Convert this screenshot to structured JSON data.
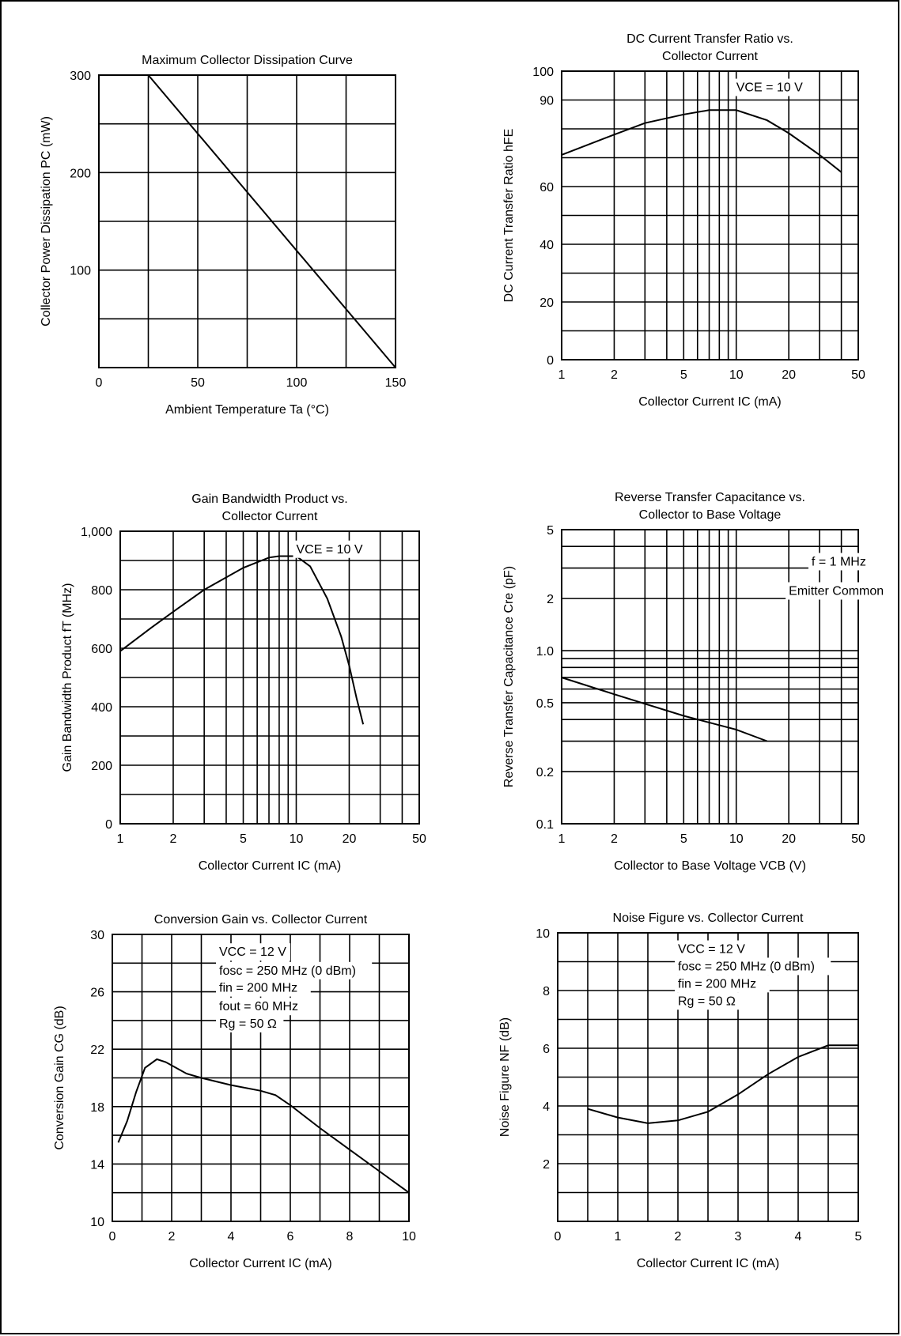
{
  "chart_data": [
    {
      "type": "line",
      "title": "Maximum Collector Dissipation Curve",
      "xlabel": "Ambient Temperature Ta (°C)",
      "ylabel": "Collector Power Dissipation PC (mW)",
      "xscale": "linear",
      "yscale": "linear",
      "xlim": [
        0,
        150
      ],
      "ylim": [
        0,
        300
      ],
      "xgrid": [
        25,
        50,
        75,
        100,
        125
      ],
      "ygrid": [
        50,
        100,
        150,
        200,
        250
      ],
      "xticks": [
        {
          "v": 0,
          "label": "0"
        },
        {
          "v": 50,
          "label": "50"
        },
        {
          "v": 100,
          "label": "100"
        },
        {
          "v": 150,
          "label": "150"
        }
      ],
      "yticks": [
        {
          "v": 100,
          "label": "100"
        },
        {
          "v": 200,
          "label": "200"
        },
        {
          "v": 300,
          "label": "300"
        }
      ],
      "series": [
        {
          "x": [
            25,
            150
          ],
          "y": [
            300,
            0
          ]
        }
      ],
      "annotations": []
    },
    {
      "type": "line",
      "title": "DC Current Transfer Ratio vs. Collector Current",
      "xlabel": "Collector Current IC (mA)",
      "ylabel": "DC Current Transfer Ratio hFE",
      "xscale": "log",
      "yscale": "linear",
      "xlim": [
        1,
        50
      ],
      "ylim": [
        0,
        100
      ],
      "xgrid": [
        2,
        3,
        4,
        5,
        6,
        7,
        8,
        9,
        10,
        20,
        30,
        40
      ],
      "ygrid": [
        10,
        20,
        30,
        40,
        50,
        60,
        70,
        80,
        90
      ],
      "xticks": [
        {
          "v": 1,
          "label": "1"
        },
        {
          "v": 2,
          "label": "2"
        },
        {
          "v": 5,
          "label": "5"
        },
        {
          "v": 10,
          "label": "10"
        },
        {
          "v": 20,
          "label": "20"
        },
        {
          "v": 50,
          "label": "50"
        }
      ],
      "yticks": [
        {
          "v": 0,
          "label": "0"
        },
        {
          "v": 20,
          "label": "20"
        },
        {
          "v": 40,
          "label": "40"
        },
        {
          "v": 60,
          "label": "60"
        },
        {
          "v": 90,
          "label": "90"
        },
        {
          "v": 100,
          "label": "100"
        }
      ],
      "series": [
        {
          "x": [
            1,
            2,
            3,
            5,
            7,
            10,
            15,
            20,
            30,
            40
          ],
          "y": [
            71,
            78,
            82,
            85,
            86.5,
            86.5,
            83,
            78.5,
            71,
            65
          ]
        }
      ],
      "annotations": [
        {
          "text": "VCE = 10 V",
          "x": 10,
          "y": 93
        }
      ]
    },
    {
      "type": "line",
      "title": "Gain Bandwidth Product vs. Collector Current",
      "xlabel": "Collector Current IC (mA)",
      "ylabel": "Gain Bandwidth Product fT (MHz)",
      "xscale": "log",
      "yscale": "linear",
      "xlim": [
        1,
        50
      ],
      "ylim": [
        0,
        1000
      ],
      "xgrid": [
        2,
        3,
        4,
        5,
        6,
        7,
        8,
        9,
        10,
        20,
        30,
        40
      ],
      "ygrid": [
        100,
        200,
        300,
        400,
        500,
        600,
        700,
        800,
        900
      ],
      "xticks": [
        {
          "v": 1,
          "label": "1"
        },
        {
          "v": 2,
          "label": "2"
        },
        {
          "v": 5,
          "label": "5"
        },
        {
          "v": 10,
          "label": "10"
        },
        {
          "v": 20,
          "label": "20"
        },
        {
          "v": 50,
          "label": "50"
        }
      ],
      "yticks": [
        {
          "v": 0,
          "label": "0"
        },
        {
          "v": 200,
          "label": "200"
        },
        {
          "v": 400,
          "label": "400"
        },
        {
          "v": 600,
          "label": "600"
        },
        {
          "v": 800,
          "label": "800"
        },
        {
          "v": 1000,
          "label": "1,000"
        }
      ],
      "series": [
        {
          "x": [
            1,
            1.5,
            2,
            3,
            5,
            7,
            8,
            10,
            12,
            15,
            18,
            20,
            22,
            24
          ],
          "y": [
            590,
            670,
            725,
            800,
            875,
            910,
            915,
            915,
            880,
            770,
            640,
            540,
            430,
            340
          ]
        }
      ],
      "annotations": [
        {
          "text": "VCE = 10 V",
          "x": 10,
          "y": 925
        }
      ]
    },
    {
      "type": "line",
      "title": "Reverse Transfer Capacitance vs. Collector to Base Voltage",
      "xlabel": "Collector to Base Voltage VCB (V)",
      "ylabel": "Reverse Transfer Capacitance Cre (pF)",
      "xscale": "log",
      "yscale": "log",
      "xlim": [
        1,
        50
      ],
      "ylim": [
        0.1,
        5
      ],
      "xgrid": [
        2,
        3,
        4,
        5,
        6,
        7,
        8,
        9,
        10,
        20,
        30,
        40
      ],
      "ygrid": [
        0.2,
        0.3,
        0.4,
        0.5,
        0.6,
        0.7,
        0.8,
        0.9,
        1,
        2,
        3,
        4
      ],
      "xticks": [
        {
          "v": 1,
          "label": "1"
        },
        {
          "v": 2,
          "label": "2"
        },
        {
          "v": 5,
          "label": "5"
        },
        {
          "v": 10,
          "label": "10"
        },
        {
          "v": 20,
          "label": "20"
        },
        {
          "v": 50,
          "label": "50"
        }
      ],
      "yticks": [
        {
          "v": 0.1,
          "label": "0.1"
        },
        {
          "v": 0.2,
          "label": "0.2"
        },
        {
          "v": 0.5,
          "label": "0.5"
        },
        {
          "v": 1,
          "label": "1.0"
        },
        {
          "v": 2,
          "label": "2"
        },
        {
          "v": 5,
          "label": "5"
        }
      ],
      "series": [
        {
          "x": [
            1,
            2,
            5,
            10,
            15
          ],
          "y": [
            0.7,
            0.56,
            0.42,
            0.35,
            0.3
          ]
        }
      ],
      "annotations": [
        {
          "text": "f = 1 MHz",
          "x": 27,
          "y": 3.1
        },
        {
          "text": "Emitter Common",
          "x": 20,
          "y": 2.1
        }
      ]
    },
    {
      "type": "line",
      "title": "Conversion Gain vs. Collector Current",
      "xlabel": "Collector Current IC (mA)",
      "ylabel": "Conversion Gain CG (dB)",
      "xscale": "linear",
      "yscale": "linear",
      "xlim": [
        0,
        10
      ],
      "ylim": [
        10,
        30
      ],
      "xgrid": [
        1,
        2,
        3,
        4,
        5,
        6,
        7,
        8,
        9
      ],
      "ygrid": [
        12,
        14,
        16,
        18,
        20,
        22,
        24,
        26,
        28
      ],
      "xticks": [
        {
          "v": 0,
          "label": "0"
        },
        {
          "v": 2,
          "label": "2"
        },
        {
          "v": 4,
          "label": "4"
        },
        {
          "v": 6,
          "label": "6"
        },
        {
          "v": 8,
          "label": "8"
        },
        {
          "v": 10,
          "label": "10"
        }
      ],
      "yticks": [
        {
          "v": 10,
          "label": "10"
        },
        {
          "v": 14,
          "label": "14"
        },
        {
          "v": 18,
          "label": "18"
        },
        {
          "v": 22,
          "label": "22"
        },
        {
          "v": 26,
          "label": "26"
        },
        {
          "v": 30,
          "label": "30"
        }
      ],
      "series": [
        {
          "x": [
            0.2,
            0.5,
            0.8,
            1.1,
            1.5,
            1.8,
            2.5,
            3,
            4,
            5,
            5.5,
            6,
            7,
            8,
            9,
            10
          ],
          "y": [
            15.5,
            17,
            19,
            20.7,
            21.3,
            21.1,
            20.3,
            20,
            19.5,
            19.1,
            18.8,
            18.1,
            16.5,
            15,
            13.5,
            12
          ]
        }
      ],
      "annotations": [
        {
          "text": "VCC = 12 V",
          "x": 3.6,
          "y": 28.5
        },
        {
          "text": "fosc = 250 MHz (0 dBm)",
          "x": 3.6,
          "y": 27.2
        },
        {
          "text": "fin = 200 MHz",
          "x": 3.6,
          "y": 26
        },
        {
          "text": "fout = 60 MHz",
          "x": 3.6,
          "y": 24.7
        },
        {
          "text": "Rg = 50 Ω",
          "x": 3.6,
          "y": 23.5
        }
      ]
    },
    {
      "type": "line",
      "title": "Noise Figure vs. Collector Current",
      "xlabel": "Collector Current IC (mA)",
      "ylabel": "Noise Figure NF (dB)",
      "xscale": "linear",
      "yscale": "linear",
      "xlim": [
        0,
        5
      ],
      "ylim": [
        0,
        10
      ],
      "xgrid": [
        0.5,
        1,
        1.5,
        2,
        2.5,
        3,
        3.5,
        4,
        4.5
      ],
      "ygrid": [
        1,
        2,
        3,
        4,
        5,
        6,
        7,
        8,
        9
      ],
      "xticks": [
        {
          "v": 0,
          "label": "0"
        },
        {
          "v": 1,
          "label": "1"
        },
        {
          "v": 2,
          "label": "2"
        },
        {
          "v": 3,
          "label": "3"
        },
        {
          "v": 4,
          "label": "4"
        },
        {
          "v": 5,
          "label": "5"
        }
      ],
      "yticks": [
        {
          "v": 2,
          "label": "2"
        },
        {
          "v": 4,
          "label": "4"
        },
        {
          "v": 6,
          "label": "6"
        },
        {
          "v": 8,
          "label": "8"
        },
        {
          "v": 10,
          "label": "10"
        }
      ],
      "series": [
        {
          "x": [
            0.5,
            1,
            1.5,
            2,
            2.5,
            3,
            3.5,
            4,
            4.5,
            5
          ],
          "y": [
            3.9,
            3.6,
            3.4,
            3.5,
            3.8,
            4.4,
            5.1,
            5.7,
            6.1,
            6.1
          ]
        }
      ],
      "annotations": [
        {
          "text": "VCC = 12 V",
          "x": 2,
          "y": 9.3
        },
        {
          "text": "fosc = 250 MHz (0 dBm)",
          "x": 2,
          "y": 8.7
        },
        {
          "text": "fin = 200 MHz",
          "x": 2,
          "y": 8.1
        },
        {
          "text": "Rg = 50 Ω",
          "x": 2,
          "y": 7.5
        }
      ]
    }
  ]
}
